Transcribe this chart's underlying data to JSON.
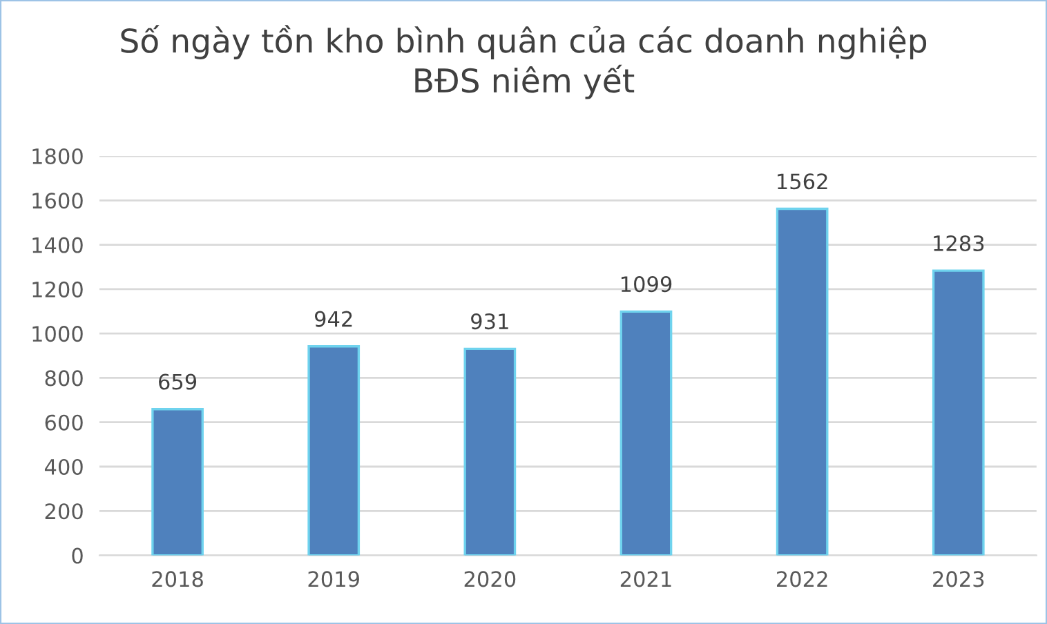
{
  "chart_data": {
    "type": "bar",
    "title": "Số ngày tồn kho bình quân của các doanh nghiệp\nBĐS niêm yết",
    "categories": [
      "2018",
      "2019",
      "2020",
      "2021",
      "2022",
      "2023"
    ],
    "values": [
      659,
      942,
      931,
      1099,
      1562,
      1283
    ],
    "color": "#4f81bd",
    "ylim": [
      0,
      1800
    ],
    "yticks": [
      0,
      200,
      400,
      600,
      800,
      1000,
      1200,
      1400,
      1600,
      1800
    ],
    "grid": "y",
    "data_labels": true
  }
}
